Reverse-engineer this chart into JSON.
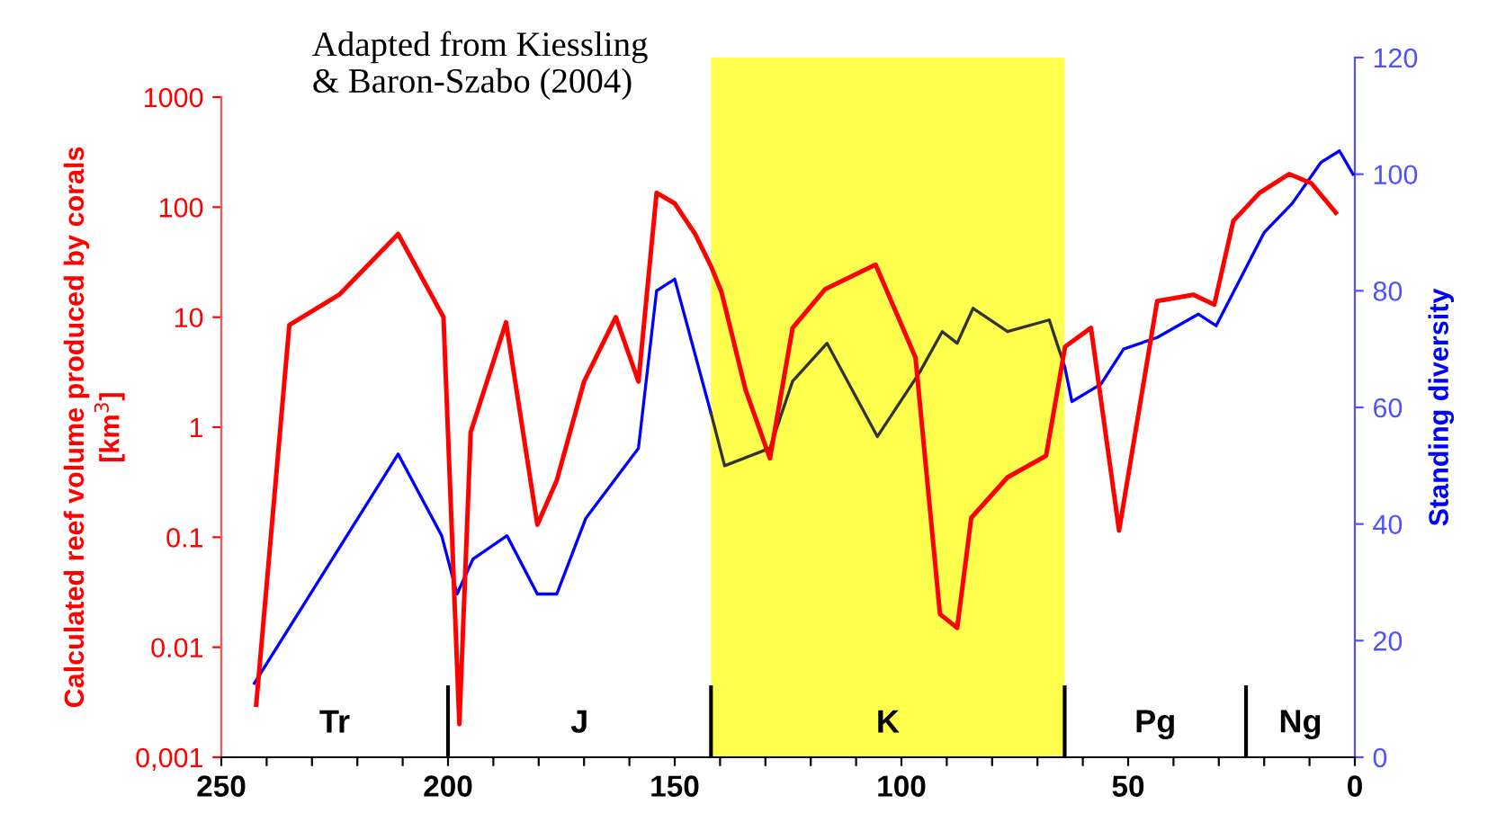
{
  "chart_data": {
    "type": "line",
    "ylabel": "Calculated reef volume produced by corals\n[km$^{3}$]",
    "y2label": "Standing diversity",
    "annotations": [
      "Adapted from Kiessling\n& Baron-Szabo (2004)",
      "Tr",
      "J",
      "Pg",
      "Ng"
    ],
    "xlim": [
      250,
      0
    ],
    "xticks": [
      250,
      {
        "value": 240,
        "label": null
      },
      {
        "value": 230,
        "label": null
      },
      {
        "value": 220,
        "label": null
      },
      {
        "value": 210,
        "label": null
      },
      200,
      {
        "value": 190,
        "label": null
      },
      {
        "value": 180,
        "label": null
      },
      {
        "value": 170,
        "label": null
      },
      {
        "value": 160,
        "label": null
      },
      150,
      {
        "value": 140,
        "label": null
      },
      {
        "value": 130,
        "label": null
      },
      {
        "value": 120,
        "label": null
      },
      {
        "value": 110,
        "label": null
      },
      100,
      {
        "value": 90,
        "label": null
      },
      {
        "value": 80,
        "label": null
      },
      {
        "value": 70,
        "label": null
      },
      {
        "value": 60,
        "label": null
      },
      50,
      {
        "value": 40,
        "label": null
      },
      {
        "value": 30,
        "label": null
      },
      {
        "value": 20,
        "label": null
      },
      {
        "value": 10,
        "label": null
      },
      0
    ],
    "log": "y",
    "ylim": [
      0.001,
      1000
    ],
    "yticks": [
      {
        "value": 0.001,
        "label": "0,001"
      },
      0.01,
      0.1,
      1,
      10,
      100,
      1000
    ],
    "y2lim": [
      0,
      120
    ],
    "y2ticks": [
      0,
      20,
      40,
      60,
      80,
      100,
      120
    ],
    "grid": false,
    "legend": false,
    "marker": "none",
    "line_style": "solid",
    "bands": [
      {
        "axis": "x",
        "from": 142,
        "to": 64,
        "label": "K",
        "color": "#ffff4d"
      }
    ],
    "ref_lines": [
      {
        "axis": "x",
        "value": 200,
        "color": "#000000"
      },
      {
        "axis": "x",
        "value": 142,
        "color": "#000000"
      },
      {
        "axis": "x",
        "value": 64,
        "color": "#000000"
      },
      {
        "axis": "x",
        "value": 24,
        "color": "#000000"
      }
    ],
    "series": [
      {
        "color": "#ff0000",
        "x": [
          242.3,
          235,
          224,
          211,
          201,
          197.5,
          195,
          187.2,
          180.3,
          176,
          170,
          163,
          158,
          154,
          150,
          145.5,
          142,
          139.7,
          134.4,
          129,
          124,
          116.8,
          105.7,
          96.9,
          91.5,
          87.7,
          84.6,
          76.6,
          68.1,
          63.9,
          58.2,
          52,
          43.6,
          35.6,
          31,
          26.8,
          21,
          14.5,
          9.6,
          4.2
        ],
        "values": [
          0.003,
          8.5,
          16,
          57,
          10,
          0.002,
          0.9,
          9,
          0.13,
          0.33,
          2.6,
          10,
          2.6,
          135,
          108,
          57,
          29,
          17,
          2.2,
          0.52,
          8,
          18,
          30,
          4.3,
          0.02,
          0.015,
          0.15,
          0.35,
          0.55,
          5.4,
          8,
          0.115,
          14,
          16,
          13,
          75,
          135,
          200,
          165,
          89
        ]
      },
      {
        "color": "#0000ff",
        "axis": "y2",
        "x": [
          242.7,
          211,
          201.4,
          198,
          194.5,
          187,
          180.3,
          176,
          169.6,
          158,
          154,
          150,
          142
        ],
        "values": [
          12.7,
          52,
          38,
          28,
          34,
          38,
          28,
          28,
          41,
          53,
          80,
          82,
          59
        ]
      },
      {
        "color": "#333333",
        "axis": "y2",
        "x": [
          142,
          139,
          129,
          124,
          116.4,
          105.3,
          96,
          91,
          87.7,
          84.2,
          76.6,
          67.4,
          64
        ],
        "values": [
          59,
          50,
          53,
          64.5,
          71,
          55,
          66,
          73,
          71,
          77,
          73,
          75,
          67
        ]
      },
      {
        "color": "#0000ff",
        "axis": "y2",
        "x": [
          64,
          62.4,
          56,
          51,
          43.6,
          34.5,
          30.6,
          20,
          13.8,
          7.5,
          3.4,
          0.4
        ],
        "values": [
          67,
          61,
          64,
          70,
          72,
          76,
          74,
          90,
          95,
          102,
          104,
          100
        ]
      }
    ]
  }
}
